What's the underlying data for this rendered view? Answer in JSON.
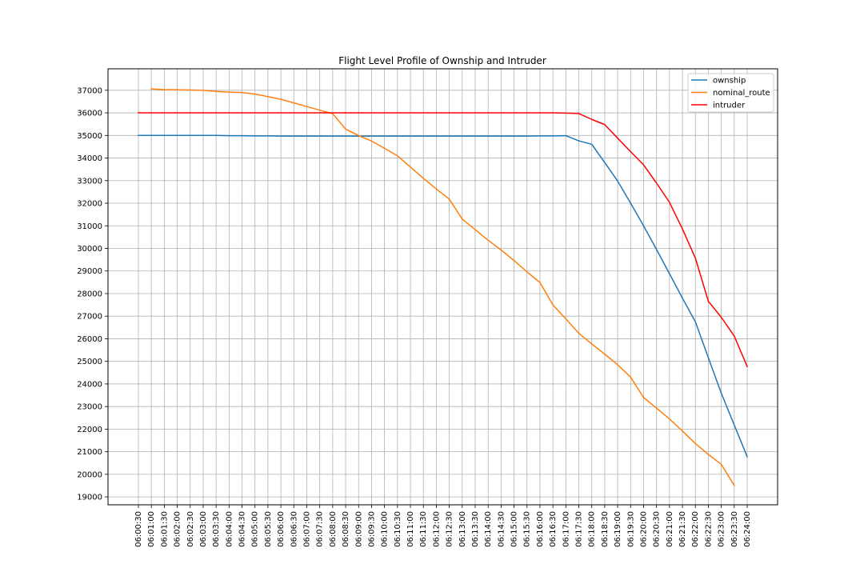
{
  "chart_data": {
    "type": "line",
    "title": "Flight Level Profile of Ownship and Intruder",
    "xlabel": "",
    "ylabel": "",
    "categories": [
      "06:00:30",
      "06:01:00",
      "06:01:30",
      "06:02:00",
      "06:02:30",
      "06:03:00",
      "06:03:30",
      "06:04:00",
      "06:04:30",
      "06:05:00",
      "06:05:30",
      "06:06:00",
      "06:06:30",
      "06:07:00",
      "06:07:30",
      "06:08:00",
      "06:08:30",
      "06:09:00",
      "06:09:30",
      "06:10:00",
      "06:10:30",
      "06:11:00",
      "06:11:30",
      "06:12:00",
      "06:12:30",
      "06:13:00",
      "06:13:30",
      "06:14:00",
      "06:14:30",
      "06:15:00",
      "06:15:30",
      "06:16:00",
      "06:16:30",
      "06:17:00",
      "06:17:30",
      "06:18:00",
      "06:18:30",
      "06:19:00",
      "06:19:30",
      "06:20:00",
      "06:20:30",
      "06:21:00",
      "06:21:30",
      "06:22:00",
      "06:22:30",
      "06:23:00",
      "06:23:30",
      "06:24:00"
    ],
    "y_ticks": [
      19000,
      20000,
      21000,
      22000,
      23000,
      24000,
      25000,
      26000,
      27000,
      28000,
      29000,
      30000,
      31000,
      32000,
      33000,
      34000,
      35000,
      36000,
      37000
    ],
    "ylim": [
      18650,
      37950
    ],
    "grid": true,
    "legend_position": "top-right",
    "series": [
      {
        "name": "ownship",
        "color": "#1f77b4",
        "values": [
          35000,
          35000,
          35000,
          35000,
          35000,
          35000,
          35000,
          34990,
          34990,
          34980,
          34980,
          34970,
          34970,
          34970,
          34970,
          34970,
          34970,
          34970,
          34970,
          34970,
          34970,
          34970,
          34970,
          34970,
          34970,
          34970,
          34970,
          34970,
          34970,
          34970,
          34970,
          34980,
          34980,
          34990,
          34760,
          34610,
          33800,
          32980,
          32000,
          31000,
          29950,
          28880,
          27800,
          26750,
          25160,
          23590,
          22180,
          20780
        ]
      },
      {
        "name": "nominal_route",
        "color": "#ff7f0e",
        "values": [
          null,
          37060,
          37030,
          37020,
          37010,
          37000,
          36950,
          36920,
          36900,
          36830,
          36720,
          36600,
          36440,
          36280,
          36120,
          35960,
          35280,
          35000,
          34750,
          34430,
          34100,
          33600,
          33100,
          32630,
          32180,
          31300,
          30830,
          30360,
          29930,
          29460,
          28960,
          28490,
          27500,
          26880,
          26240,
          25770,
          25320,
          24850,
          24300,
          23400,
          22930,
          22450,
          21920,
          21360,
          20880,
          20440,
          19510,
          null
        ]
      },
      {
        "name": "intruder",
        "color": "#ff0000",
        "values": [
          36000,
          36000,
          36000,
          36000,
          36000,
          36000,
          36000,
          36000,
          36000,
          36000,
          36000,
          36000,
          36000,
          36000,
          36000,
          36000,
          36000,
          36000,
          36000,
          36000,
          36000,
          36000,
          36000,
          36000,
          36000,
          36000,
          36000,
          36000,
          36000,
          36000,
          36000,
          36000,
          36000,
          35990,
          35970,
          35710,
          35480,
          34880,
          34280,
          33700,
          32890,
          32040,
          30860,
          29570,
          27660,
          26950,
          26120,
          24770
        ]
      }
    ]
  }
}
